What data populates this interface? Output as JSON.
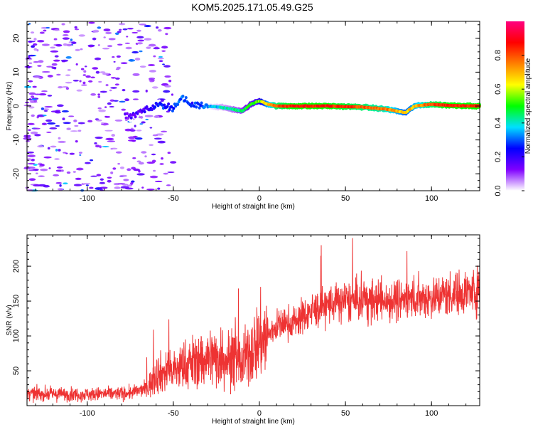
{
  "title": "KOM5.2025.171.05.49.G25",
  "chart_data": [
    {
      "type": "heatmap",
      "xlabel": "Height of straight line (km)",
      "ylabel": "Frequency (Hz)",
      "xlim": [
        -135,
        128
      ],
      "ylim": [
        -25,
        25
      ],
      "x_ticks": [
        -100,
        -50,
        0,
        50,
        100
      ],
      "y_ticks": [
        -20,
        -10,
        0,
        10,
        20
      ],
      "colorbar": {
        "label": "Normalized spectral amplitude",
        "range": [
          0,
          1
        ],
        "ticks": [
          0.0,
          0.2,
          0.4,
          0.6,
          0.8
        ],
        "tick_labels": [
          "0.0",
          "0.2",
          "0.4",
          "0.6",
          "0.8"
        ],
        "colors": [
          "#ffffff",
          "#8000ff",
          "#0000ff",
          "#00e0ff",
          "#00ff00",
          "#ffff00",
          "#ff8000",
          "#ff0000",
          "#ff0080"
        ]
      },
      "ridge": {
        "description_points_x": [
          -75,
          -65,
          -58,
          -50,
          -45,
          -40,
          -35,
          -30,
          -20,
          -10,
          -5,
          0,
          5,
          10,
          20,
          40,
          60,
          75,
          80,
          85,
          90,
          100,
          110,
          128
        ],
        "description_points_y": [
          -3,
          -1,
          0.5,
          -0.5,
          2.5,
          0.5,
          0.2,
          0,
          -0.5,
          -1.5,
          0.5,
          1.5,
          0.5,
          0,
          0,
          0,
          -0.3,
          -1,
          -1.5,
          -2,
          0,
          0.5,
          0.2,
          0
        ],
        "amplitude": [
          0.15,
          0.2,
          0.25,
          0.25,
          0.3,
          0.25,
          0.3,
          0.35,
          0.4,
          0.45,
          0.5,
          0.55,
          0.7,
          0.8,
          0.85,
          0.85,
          0.8,
          0.75,
          0.7,
          0.65,
          0.7,
          0.8,
          0.85,
          0.85
        ]
      }
    },
    {
      "type": "line",
      "xlabel": "Height of straight line (km)",
      "ylabel": "SNR (v/v)",
      "xlim": [
        -135,
        128
      ],
      "ylim": [
        0,
        245
      ],
      "x_ticks": [
        -100,
        -50,
        0,
        50,
        100
      ],
      "y_ticks": [
        50,
        100,
        150,
        200
      ],
      "series": [
        {
          "color": "#ee3333",
          "trend_x": [
            -135,
            -100,
            -75,
            -65,
            -60,
            -50,
            -40,
            -30,
            -20,
            -10,
            0,
            5,
            10,
            20,
            30,
            40,
            50,
            60,
            70,
            80,
            90,
            100,
            110,
            128
          ],
          "trend_y": [
            17,
            16,
            18,
            25,
            45,
            50,
            60,
            70,
            68,
            60,
            95,
            100,
            115,
            120,
            135,
            145,
            150,
            150,
            150,
            152,
            155,
            155,
            160,
            165
          ]
        }
      ]
    }
  ]
}
